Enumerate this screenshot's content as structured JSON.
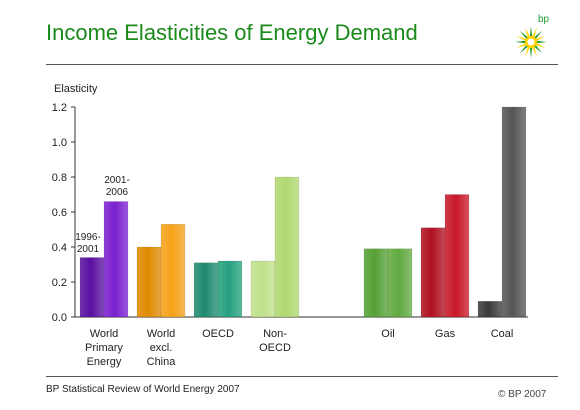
{
  "header": {
    "title": "Income Elasticities of Energy Demand",
    "logo_text": "bp"
  },
  "footer": {
    "source": "BP Statistical Review of World Energy 2007",
    "copyright": "© BP 2007"
  },
  "colors": {
    "title": "#1a8a1a",
    "logo_green": "#1a9a2a",
    "logo_yellow": "#ffd200"
  },
  "chart_data": {
    "type": "bar",
    "ylabel": "Elasticity",
    "ylim": [
      0,
      1.2
    ],
    "yticks": [
      "0.0",
      "0.2",
      "0.4",
      "0.6",
      "0.8",
      "1.0",
      "1.2"
    ],
    "grid": false,
    "categories": [
      {
        "label": [
          "World",
          "Primary",
          "Energy"
        ],
        "values": [
          0.34,
          0.66
        ],
        "colors": [
          "#5a0fa0",
          "#7a1fd0"
        ]
      },
      {
        "label": [
          "World",
          "excl.",
          "China"
        ],
        "values": [
          0.4,
          0.53
        ],
        "colors": [
          "#e08a00",
          "#f5a218"
        ]
      },
      {
        "label": [
          "OECD"
        ],
        "values": [
          0.31,
          0.32
        ],
        "colors": [
          "#1e8a6e",
          "#25a07e"
        ]
      },
      {
        "label": [
          "Non-",
          "OECD"
        ],
        "values": [
          0.32,
          0.8
        ],
        "colors": [
          "#bfe08a",
          "#b0d870"
        ]
      },
      {
        "label": [
          "Oil"
        ],
        "values": [
          0.39,
          0.39
        ],
        "colors": [
          "#55a035",
          "#60aa40"
        ]
      },
      {
        "label": [
          "Gas"
        ],
        "values": [
          0.51,
          0.7
        ],
        "colors": [
          "#b01020",
          "#c81828"
        ]
      },
      {
        "label": [
          "Coal"
        ],
        "values": [
          0.09,
          1.2
        ],
        "colors": [
          "#3a3a3a",
          "#555555"
        ]
      }
    ],
    "annotations": [
      {
        "text": [
          "1996-",
          "2001"
        ],
        "category": 0,
        "bar": 0
      },
      {
        "text": [
          "2001-",
          "2006"
        ],
        "category": 0,
        "bar": 1
      }
    ]
  }
}
